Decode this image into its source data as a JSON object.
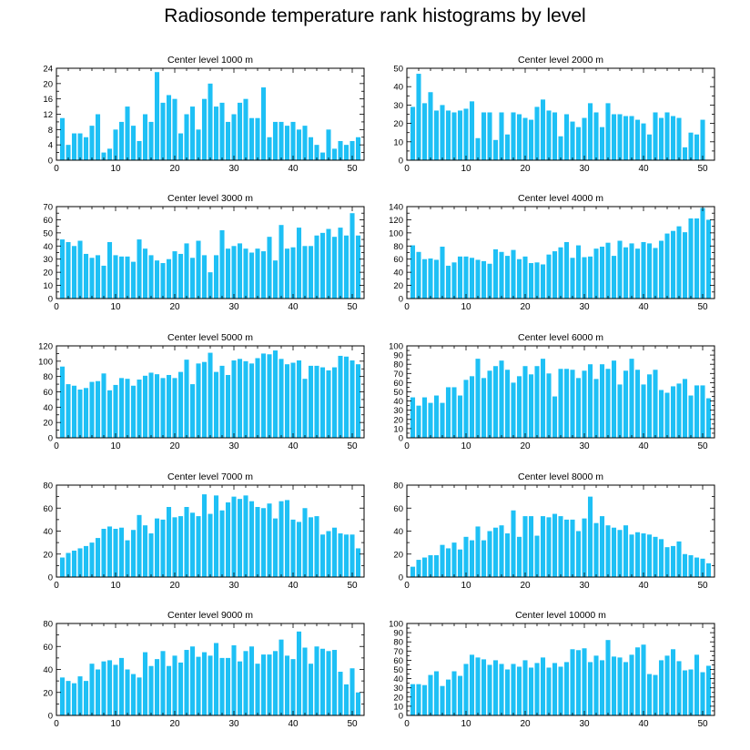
{
  "figure": {
    "title": "Radiosonde temperature rank histograms by level"
  },
  "colors": {
    "bar": "#1ec0f5",
    "axis": "#000000",
    "background": "#ffffff"
  },
  "chart_data": [
    {
      "type": "bar",
      "title": "Center level 1000 m",
      "xlabel": "",
      "ylabel": "",
      "xlim": [
        0,
        52
      ],
      "ylim": [
        0,
        24
      ],
      "xticks": [
        0,
        10,
        20,
        30,
        40,
        50
      ],
      "yticks": [
        0,
        4,
        8,
        12,
        16,
        20,
        24
      ],
      "categories": [
        1,
        2,
        3,
        4,
        5,
        6,
        7,
        8,
        9,
        10,
        11,
        12,
        13,
        14,
        15,
        16,
        17,
        18,
        19,
        20,
        21,
        22,
        23,
        24,
        25,
        26,
        27,
        28,
        29,
        30,
        31,
        32,
        33,
        34,
        35,
        36,
        37,
        38,
        39,
        40,
        41,
        42,
        43,
        44,
        45,
        46,
        47,
        48,
        49,
        50,
        51
      ],
      "values": [
        11,
        4,
        7,
        7,
        6,
        9,
        12,
        2,
        3,
        8,
        10,
        14,
        9,
        5,
        12,
        10,
        23,
        15,
        17,
        16,
        7,
        12,
        14,
        8,
        16,
        20,
        14,
        15,
        10,
        12,
        15,
        16,
        11,
        11,
        19,
        6,
        10,
        10,
        9,
        10,
        8,
        9,
        6,
        4,
        2,
        8,
        3,
        5,
        4,
        5,
        6
      ]
    },
    {
      "type": "bar",
      "title": "Center level 2000 m",
      "xlabel": "",
      "ylabel": "",
      "xlim": [
        0,
        52
      ],
      "ylim": [
        0,
        50
      ],
      "xticks": [
        0,
        10,
        20,
        30,
        40,
        50
      ],
      "yticks": [
        0,
        10,
        20,
        30,
        40,
        50
      ],
      "categories": [
        1,
        2,
        3,
        4,
        5,
        6,
        7,
        8,
        9,
        10,
        11,
        12,
        13,
        14,
        15,
        16,
        17,
        18,
        19,
        20,
        21,
        22,
        23,
        24,
        25,
        26,
        27,
        28,
        29,
        30,
        31,
        32,
        33,
        34,
        35,
        36,
        37,
        38,
        39,
        40,
        41,
        42,
        43,
        44,
        45,
        46,
        47,
        48,
        49,
        50,
        51
      ],
      "values": [
        29,
        47,
        31,
        37,
        27,
        30,
        27,
        26,
        27,
        28,
        32,
        12,
        26,
        26,
        11,
        26,
        14,
        26,
        25,
        23,
        22,
        29,
        33,
        27,
        26,
        13,
        25,
        21,
        18,
        23,
        31,
        26,
        18,
        31,
        25,
        25,
        24,
        24,
        22,
        20,
        14,
        26,
        23,
        26,
        24,
        23,
        7,
        15,
        14,
        22,
        0
      ]
    },
    {
      "type": "bar",
      "title": "Center level 3000 m",
      "xlabel": "",
      "ylabel": "",
      "xlim": [
        0,
        52
      ],
      "ylim": [
        0,
        70
      ],
      "xticks": [
        0,
        10,
        20,
        30,
        40,
        50
      ],
      "yticks": [
        0,
        10,
        20,
        30,
        40,
        50,
        60,
        70
      ],
      "categories": [
        1,
        2,
        3,
        4,
        5,
        6,
        7,
        8,
        9,
        10,
        11,
        12,
        13,
        14,
        15,
        16,
        17,
        18,
        19,
        20,
        21,
        22,
        23,
        24,
        25,
        26,
        27,
        28,
        29,
        30,
        31,
        32,
        33,
        34,
        35,
        36,
        37,
        38,
        39,
        40,
        41,
        42,
        43,
        44,
        45,
        46,
        47,
        48,
        49,
        50,
        51
      ],
      "values": [
        45,
        43,
        40,
        44,
        34,
        31,
        33,
        25,
        43,
        33,
        32,
        32,
        28,
        45,
        38,
        33,
        29,
        27,
        30,
        36,
        34,
        42,
        31,
        44,
        33,
        20,
        33,
        52,
        38,
        40,
        42,
        38,
        35,
        38,
        36,
        47,
        29,
        56,
        38,
        39,
        54,
        40,
        40,
        48,
        50,
        53,
        47,
        54,
        48,
        65,
        48
      ]
    },
    {
      "type": "bar",
      "title": "Center level 4000 m",
      "xlabel": "",
      "ylabel": "",
      "xlim": [
        0,
        52
      ],
      "ylim": [
        0,
        140
      ],
      "xticks": [
        0,
        10,
        20,
        30,
        40,
        50
      ],
      "yticks": [
        0,
        20,
        40,
        60,
        80,
        100,
        120,
        140
      ],
      "categories": [
        1,
        2,
        3,
        4,
        5,
        6,
        7,
        8,
        9,
        10,
        11,
        12,
        13,
        14,
        15,
        16,
        17,
        18,
        19,
        20,
        21,
        22,
        23,
        24,
        25,
        26,
        27,
        28,
        29,
        30,
        31,
        32,
        33,
        34,
        35,
        36,
        37,
        38,
        39,
        40,
        41,
        42,
        43,
        44,
        45,
        46,
        47,
        48,
        49,
        50,
        51
      ],
      "values": [
        81,
        71,
        60,
        61,
        59,
        79,
        50,
        55,
        64,
        64,
        62,
        59,
        57,
        53,
        75,
        71,
        65,
        74,
        60,
        64,
        54,
        55,
        52,
        67,
        72,
        78,
        86,
        62,
        81,
        63,
        64,
        76,
        79,
        85,
        65,
        88,
        78,
        84,
        76,
        86,
        84,
        77,
        88,
        99,
        103,
        110,
        101,
        122,
        122,
        138,
        120
      ]
    },
    {
      "type": "bar",
      "title": "Center level 5000 m",
      "xlabel": "",
      "ylabel": "",
      "xlim": [
        0,
        52
      ],
      "ylim": [
        0,
        120
      ],
      "xticks": [
        0,
        10,
        20,
        30,
        40,
        50
      ],
      "yticks": [
        0,
        20,
        40,
        60,
        80,
        100,
        120
      ],
      "categories": [
        1,
        2,
        3,
        4,
        5,
        6,
        7,
        8,
        9,
        10,
        11,
        12,
        13,
        14,
        15,
        16,
        17,
        18,
        19,
        20,
        21,
        22,
        23,
        24,
        25,
        26,
        27,
        28,
        29,
        30,
        31,
        32,
        33,
        34,
        35,
        36,
        37,
        38,
        39,
        40,
        41,
        42,
        43,
        44,
        45,
        46,
        47,
        48,
        49,
        50,
        51
      ],
      "values": [
        93,
        70,
        68,
        63,
        65,
        73,
        74,
        84,
        62,
        69,
        78,
        77,
        68,
        76,
        81,
        85,
        83,
        78,
        82,
        78,
        86,
        102,
        70,
        97,
        99,
        111,
        86,
        94,
        82,
        101,
        103,
        100,
        97,
        104,
        110,
        109,
        114,
        103,
        96,
        98,
        101,
        77,
        94,
        94,
        92,
        88,
        92,
        107,
        106,
        101,
        96
      ]
    },
    {
      "type": "bar",
      "title": "Center level 6000 m",
      "xlabel": "",
      "ylabel": "",
      "xlim": [
        0,
        52
      ],
      "ylim": [
        0,
        100
      ],
      "xticks": [
        0,
        10,
        20,
        30,
        40,
        50
      ],
      "yticks": [
        0,
        10,
        20,
        30,
        40,
        50,
        60,
        70,
        80,
        90,
        100
      ],
      "categories": [
        1,
        2,
        3,
        4,
        5,
        6,
        7,
        8,
        9,
        10,
        11,
        12,
        13,
        14,
        15,
        16,
        17,
        18,
        19,
        20,
        21,
        22,
        23,
        24,
        25,
        26,
        27,
        28,
        29,
        30,
        31,
        32,
        33,
        34,
        35,
        36,
        37,
        38,
        39,
        40,
        41,
        42,
        43,
        44,
        45,
        46,
        47,
        48,
        49,
        50,
        51
      ],
      "values": [
        44,
        35,
        44,
        38,
        46,
        38,
        55,
        55,
        46,
        63,
        67,
        86,
        65,
        73,
        78,
        84,
        74,
        60,
        67,
        78,
        69,
        78,
        86,
        70,
        45,
        75,
        75,
        74,
        65,
        73,
        80,
        64,
        80,
        75,
        84,
        58,
        73,
        86,
        74,
        58,
        69,
        74,
        52,
        49,
        56,
        59,
        64,
        46,
        57,
        57,
        43
      ]
    },
    {
      "type": "bar",
      "title": "Center level 7000 m",
      "xlabel": "",
      "ylabel": "",
      "xlim": [
        0,
        52
      ],
      "ylim": [
        0,
        80
      ],
      "xticks": [
        0,
        10,
        20,
        30,
        40,
        50
      ],
      "yticks": [
        0,
        20,
        40,
        60,
        80
      ],
      "categories": [
        1,
        2,
        3,
        4,
        5,
        6,
        7,
        8,
        9,
        10,
        11,
        12,
        13,
        14,
        15,
        16,
        17,
        18,
        19,
        20,
        21,
        22,
        23,
        24,
        25,
        26,
        27,
        28,
        29,
        30,
        31,
        32,
        33,
        34,
        35,
        36,
        37,
        38,
        39,
        40,
        41,
        42,
        43,
        44,
        45,
        46,
        47,
        48,
        49,
        50,
        51
      ],
      "values": [
        17,
        21,
        23,
        25,
        27,
        30,
        34,
        42,
        44,
        42,
        43,
        32,
        41,
        54,
        45,
        38,
        51,
        50,
        61,
        52,
        53,
        61,
        56,
        53,
        72,
        55,
        71,
        58,
        65,
        70,
        68,
        71,
        66,
        61,
        60,
        64,
        51,
        66,
        67,
        50,
        48,
        60,
        52,
        53,
        37,
        40,
        43,
        38,
        37,
        37,
        25
      ]
    },
    {
      "type": "bar",
      "title": "Center level 8000 m",
      "xlabel": "",
      "ylabel": "",
      "xlim": [
        0,
        52
      ],
      "ylim": [
        0,
        80
      ],
      "xticks": [
        0,
        10,
        20,
        30,
        40,
        50
      ],
      "yticks": [
        0,
        20,
        40,
        60,
        80
      ],
      "categories": [
        1,
        2,
        3,
        4,
        5,
        6,
        7,
        8,
        9,
        10,
        11,
        12,
        13,
        14,
        15,
        16,
        17,
        18,
        19,
        20,
        21,
        22,
        23,
        24,
        25,
        26,
        27,
        28,
        29,
        30,
        31,
        32,
        33,
        34,
        35,
        36,
        37,
        38,
        39,
        40,
        41,
        42,
        43,
        44,
        45,
        46,
        47,
        48,
        49,
        50,
        51
      ],
      "values": [
        9,
        15,
        17,
        19,
        19,
        28,
        25,
        30,
        24,
        35,
        32,
        44,
        32,
        40,
        43,
        45,
        38,
        58,
        35,
        53,
        53,
        36,
        53,
        52,
        55,
        53,
        50,
        50,
        40,
        51,
        70,
        47,
        53,
        45,
        43,
        41,
        45,
        37,
        39,
        38,
        37,
        35,
        33,
        26,
        27,
        31,
        20,
        19,
        17,
        16,
        12
      ]
    },
    {
      "type": "bar",
      "title": "Center level 9000 m",
      "xlabel": "",
      "ylabel": "",
      "xlim": [
        0,
        52
      ],
      "ylim": [
        0,
        80
      ],
      "xticks": [
        0,
        10,
        20,
        30,
        40,
        50
      ],
      "yticks": [
        0,
        20,
        40,
        60,
        80
      ],
      "categories": [
        1,
        2,
        3,
        4,
        5,
        6,
        7,
        8,
        9,
        10,
        11,
        12,
        13,
        14,
        15,
        16,
        17,
        18,
        19,
        20,
        21,
        22,
        23,
        24,
        25,
        26,
        27,
        28,
        29,
        30,
        31,
        32,
        33,
        34,
        35,
        36,
        37,
        38,
        39,
        40,
        41,
        42,
        43,
        44,
        45,
        46,
        47,
        48,
        49,
        50,
        51
      ],
      "values": [
        33,
        30,
        28,
        34,
        30,
        45,
        40,
        47,
        48,
        44,
        50,
        40,
        36,
        33,
        55,
        43,
        49,
        56,
        43,
        52,
        46,
        57,
        60,
        51,
        55,
        52,
        63,
        50,
        50,
        61,
        47,
        56,
        60,
        45,
        53,
        53,
        56,
        66,
        52,
        49,
        73,
        59,
        45,
        60,
        58,
        56,
        57,
        38,
        27,
        41,
        20
      ]
    },
    {
      "type": "bar",
      "title": "Center level 10000 m",
      "xlabel": "",
      "ylabel": "",
      "xlim": [
        0,
        52
      ],
      "ylim": [
        0,
        100
      ],
      "xticks": [
        0,
        10,
        20,
        30,
        40,
        50
      ],
      "yticks": [
        0,
        10,
        20,
        30,
        40,
        50,
        60,
        70,
        80,
        90,
        100
      ],
      "categories": [
        1,
        2,
        3,
        4,
        5,
        6,
        7,
        8,
        9,
        10,
        11,
        12,
        13,
        14,
        15,
        16,
        17,
        18,
        19,
        20,
        21,
        22,
        23,
        24,
        25,
        26,
        27,
        28,
        29,
        30,
        31,
        32,
        33,
        34,
        35,
        36,
        37,
        38,
        39,
        40,
        41,
        42,
        43,
        44,
        45,
        46,
        47,
        48,
        49,
        50,
        51
      ],
      "values": [
        34,
        34,
        33,
        44,
        48,
        32,
        39,
        48,
        43,
        56,
        66,
        63,
        61,
        55,
        60,
        56,
        50,
        56,
        53,
        60,
        52,
        57,
        63,
        52,
        57,
        53,
        58,
        72,
        71,
        73,
        58,
        65,
        60,
        82,
        64,
        63,
        58,
        66,
        74,
        77,
        45,
        44,
        60,
        65,
        72,
        59,
        49,
        50,
        66,
        47,
        54
      ]
    }
  ]
}
